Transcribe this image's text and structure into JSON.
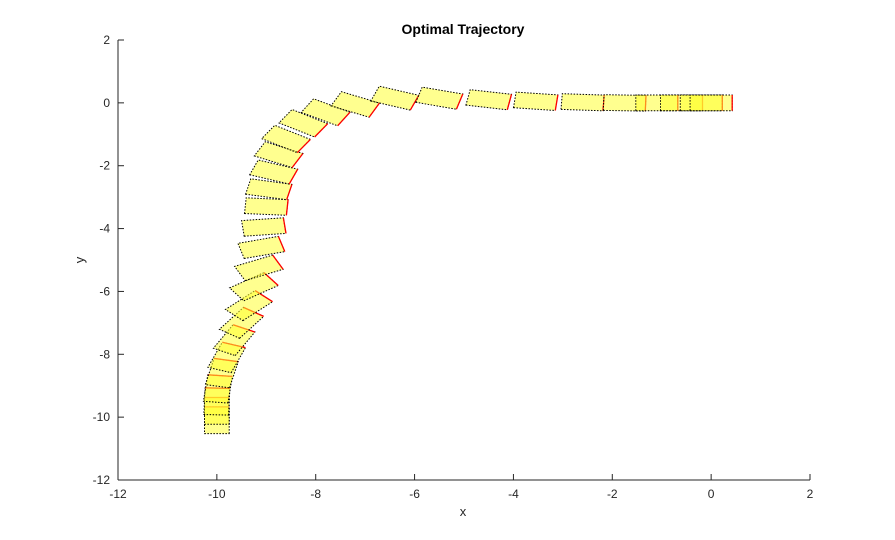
{
  "chart_data": {
    "type": "scatter",
    "title": "Optimal Trajectory",
    "xlabel": "x",
    "ylabel": "y",
    "xlim": [
      -12,
      2
    ],
    "ylim": [
      -12,
      2
    ],
    "xticks": [
      "-12",
      "-10",
      "-8",
      "-6",
      "-4",
      "-2",
      "0",
      "2"
    ],
    "yticks": [
      "-12",
      "-10",
      "-8",
      "-6",
      "-4",
      "-2",
      "0",
      "2"
    ],
    "grid": false,
    "legend": "none",
    "vehicle_length": 0.85,
    "vehicle_width": 0.5,
    "colors": {
      "body_fill": "#ffff33",
      "body_edge": "#000000",
      "front_edge": "#ff0000"
    },
    "series": [
      {
        "poses": [
          {
            "x": -10.0,
            "y": -10.1,
            "theta": 90
          },
          {
            "x": -10.0,
            "y": -9.8,
            "theta": 90
          },
          {
            "x": -10.0,
            "y": -9.5,
            "theta": 88
          },
          {
            "x": -9.98,
            "y": -9.1,
            "theta": 84
          },
          {
            "x": -9.9,
            "y": -8.6,
            "theta": 78
          },
          {
            "x": -9.8,
            "y": -8.1,
            "theta": 70
          },
          {
            "x": -9.65,
            "y": -7.55,
            "theta": 62
          },
          {
            "x": -9.5,
            "y": -7.0,
            "theta": 55
          },
          {
            "x": -9.35,
            "y": -6.45,
            "theta": 45
          },
          {
            "x": -9.25,
            "y": -5.85,
            "theta": 35
          },
          {
            "x": -9.15,
            "y": -5.25,
            "theta": 25
          },
          {
            "x": -9.1,
            "y": -4.6,
            "theta": 15
          },
          {
            "x": -9.05,
            "y": -3.95,
            "theta": 6
          },
          {
            "x": -9.0,
            "y": -3.3,
            "theta": -4
          },
          {
            "x": -8.95,
            "y": -2.75,
            "theta": -12
          },
          {
            "x": -8.85,
            "y": -2.2,
            "theta": -20
          },
          {
            "x": -8.75,
            "y": -1.65,
            "theta": -26
          },
          {
            "x": -8.6,
            "y": -1.15,
            "theta": -32
          },
          {
            "x": -8.25,
            "y": -0.65,
            "theta": -32
          },
          {
            "x": -7.8,
            "y": -0.3,
            "theta": -30
          },
          {
            "x": -7.2,
            "y": -0.05,
            "theta": -25
          },
          {
            "x": -6.4,
            "y": 0.15,
            "theta": -20
          },
          {
            "x": -5.5,
            "y": 0.15,
            "theta": -15
          },
          {
            "x": -4.5,
            "y": 0.1,
            "theta": -10
          },
          {
            "x": -3.55,
            "y": 0.05,
            "theta": -6
          },
          {
            "x": -2.6,
            "y": 0.02,
            "theta": -3
          },
          {
            "x": -1.75,
            "y": 0.0,
            "theta": -1.5
          },
          {
            "x": -1.1,
            "y": 0.0,
            "theta": 0
          },
          {
            "x": -0.6,
            "y": 0.0,
            "theta": 0
          },
          {
            "x": -0.2,
            "y": 0.0,
            "theta": 0
          },
          {
            "x": 0.0,
            "y": 0.0,
            "theta": 0
          }
        ]
      }
    ]
  }
}
